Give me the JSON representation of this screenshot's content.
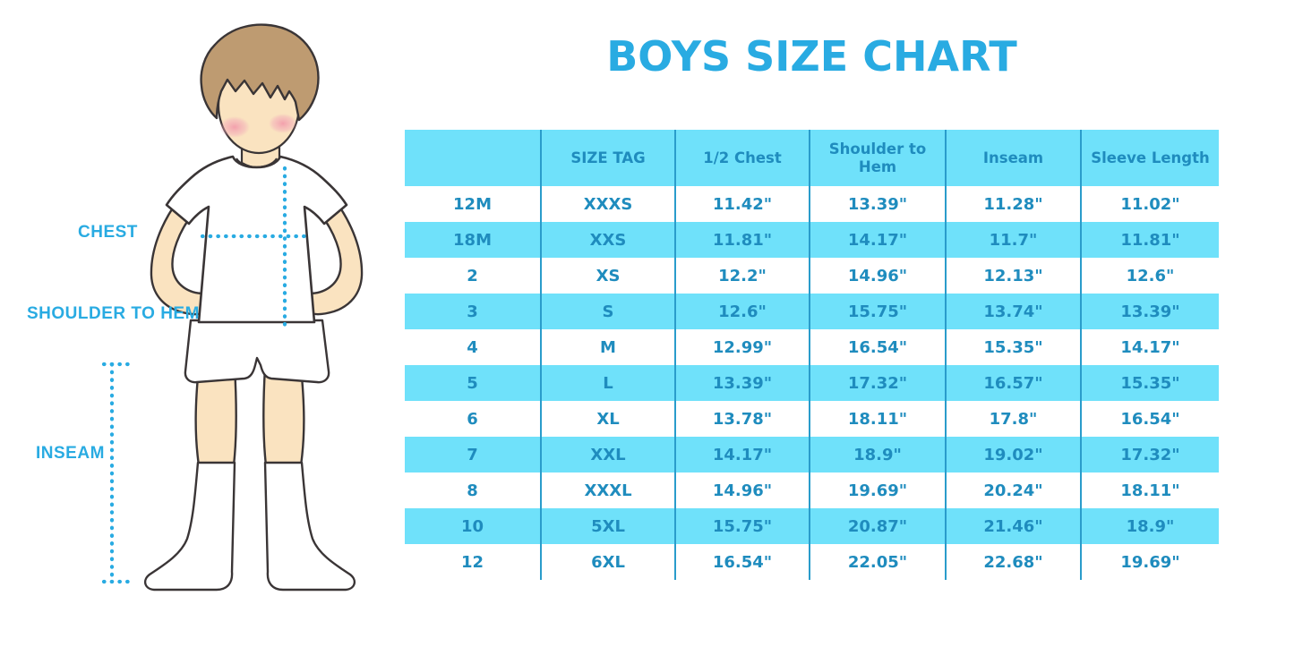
{
  "title": "BOYS SIZE CHART",
  "colors": {
    "accent_blue": "#29ABE2",
    "table_text": "#1F8CBE",
    "band_cyan": "#6FE1FA",
    "grid_line": "#2A9CCB",
    "skin": "#FAE3C0",
    "hair": "#BE9B71",
    "outline": "#3a3536"
  },
  "figure": {
    "description": "cartoon boy in white tee, shorts and knee socks with dotted measurement guides",
    "labels": {
      "chest": "CHEST",
      "shoulder_to_hem": "SHOULDER TO HEM",
      "inseam": "INSEAM"
    }
  },
  "chart_data": {
    "type": "table",
    "title": "BOYS SIZE CHART",
    "columns": [
      "",
      "SIZE TAG",
      "1/2 Chest",
      "Shoulder to Hem",
      "Inseam",
      "Sleeve Length"
    ],
    "rows": [
      [
        "12M",
        "XXXS",
        "11.42\"",
        "13.39\"",
        "11.28\"",
        "11.02\""
      ],
      [
        "18M",
        "XXS",
        "11.81\"",
        "14.17\"",
        "11.7\"",
        "11.81\""
      ],
      [
        "2",
        "XS",
        "12.2\"",
        "14.96\"",
        "12.13\"",
        "12.6\""
      ],
      [
        "3",
        "S",
        "12.6\"",
        "15.75\"",
        "13.74\"",
        "13.39\""
      ],
      [
        "4",
        "M",
        "12.99\"",
        "16.54\"",
        "15.35\"",
        "14.17\""
      ],
      [
        "5",
        "L",
        "13.39\"",
        "17.32\"",
        "16.57\"",
        "15.35\""
      ],
      [
        "6",
        "XL",
        "13.78\"",
        "18.11\"",
        "17.8\"",
        "16.54\""
      ],
      [
        "7",
        "XXL",
        "14.17\"",
        "18.9\"",
        "19.02\"",
        "17.32\""
      ],
      [
        "8",
        "XXXL",
        "14.96\"",
        "19.69\"",
        "20.24\"",
        "18.11\""
      ],
      [
        "10",
        "5XL",
        "15.75\"",
        "20.87\"",
        "21.46\"",
        "18.9\""
      ],
      [
        "12",
        "6XL",
        "16.54\"",
        "22.05\"",
        "22.68\"",
        "19.69\""
      ]
    ],
    "row_striping": "white / cyan alternating, header cyan",
    "legend_position": "none",
    "grid": "vertical column separators only"
  }
}
